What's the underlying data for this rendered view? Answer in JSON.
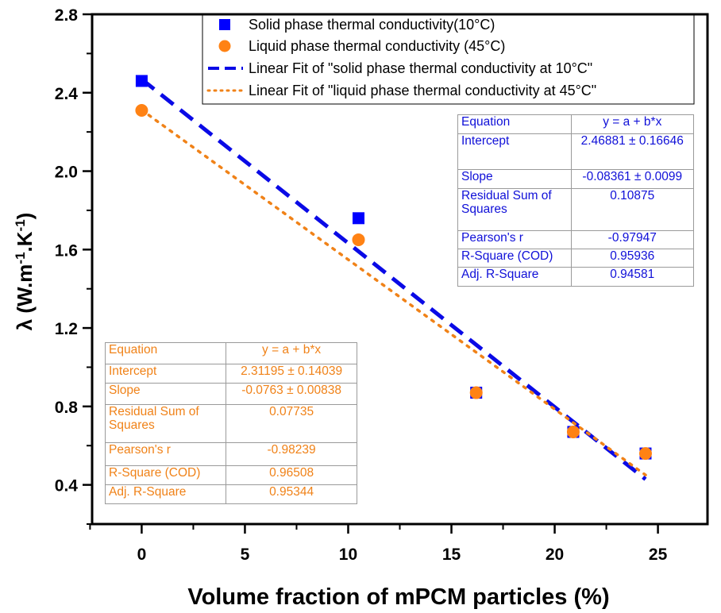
{
  "chart_data": {
    "type": "scatter",
    "xlabel": "Volume fraction of mPCM particles (%)",
    "ylabel": "λ (W.m-1.K-1)",
    "xlim": [
      -2.4,
      27.4
    ],
    "ylim": [
      0.2,
      2.8
    ],
    "xticks": [
      0,
      5,
      10,
      15,
      20,
      25
    ],
    "yticks": [
      0.4,
      0.8,
      1.2,
      1.6,
      2.0,
      2.4,
      2.8
    ],
    "x_tick_labels": [
      "0",
      "5",
      "10",
      "15",
      "20",
      "25"
    ],
    "y_tick_labels": [
      "0.4",
      "0.8",
      "1.2",
      "1.6",
      "2.0",
      "2.4",
      "2.8"
    ],
    "grid": false,
    "legend_position": "top",
    "series": [
      {
        "name": "Solid phase thermal conductivity(10°C)",
        "marker": "square",
        "color": "#0000ff",
        "x": [
          0,
          10.5,
          16.2,
          20.9,
          24.4
        ],
        "y": [
          2.46,
          1.76,
          0.87,
          0.67,
          0.56
        ]
      },
      {
        "name": "Liquid phase thermal conductivity (45°C)",
        "marker": "circle",
        "color": "#ff8214",
        "x": [
          0,
          10.5,
          16.2,
          20.9,
          24.4
        ],
        "y": [
          2.31,
          1.65,
          0.87,
          0.67,
          0.56
        ]
      }
    ],
    "fits": [
      {
        "name": "Linear Fit of \"solid phase thermal conductivity at 10°C\"",
        "style": "dashed",
        "color": "#0a0ae6",
        "intercept": 2.46881,
        "slope": -0.08361,
        "x_range": [
          0,
          24.4
        ]
      },
      {
        "name": "Linear Fit of \"liquid phase thermal conductivity at 45°C\"",
        "style": "dotted",
        "color": "#f08218",
        "intercept": 2.31195,
        "slope": -0.0763,
        "x_range": [
          0,
          24.4
        ]
      }
    ],
    "fit_tables": {
      "solid": {
        "color": "#1010d8",
        "rows": [
          {
            "label": "Equation",
            "value": "y = a + b*x"
          },
          {
            "label": "Intercept",
            "value": "2.46881 ± 0.16646"
          },
          {
            "label": "Slope",
            "value": "-0.08361 ± 0.0099"
          },
          {
            "label": "Residual Sum of Squares",
            "value": "0.10875"
          },
          {
            "label": "Pearson's r",
            "value": "-0.97947"
          },
          {
            "label": "R-Square (COD)",
            "value": "0.95936"
          },
          {
            "label": "Adj. R-Square",
            "value": "0.94581"
          }
        ]
      },
      "liquid": {
        "color": "#f08218",
        "rows": [
          {
            "label": "Equation",
            "value": "y = a + b*x"
          },
          {
            "label": "Intercept",
            "value": "2.31195 ± 0.14039"
          },
          {
            "label": "Slope",
            "value": "-0.0763 ± 0.00838"
          },
          {
            "label": "Residual Sum of Squares",
            "value": "0.07735"
          },
          {
            "label": "Pearson's r",
            "value": "-0.98239"
          },
          {
            "label": "R-Square (COD)",
            "value": "0.96508"
          },
          {
            "label": "Adj. R-Square",
            "value": "0.95344"
          }
        ]
      }
    }
  }
}
